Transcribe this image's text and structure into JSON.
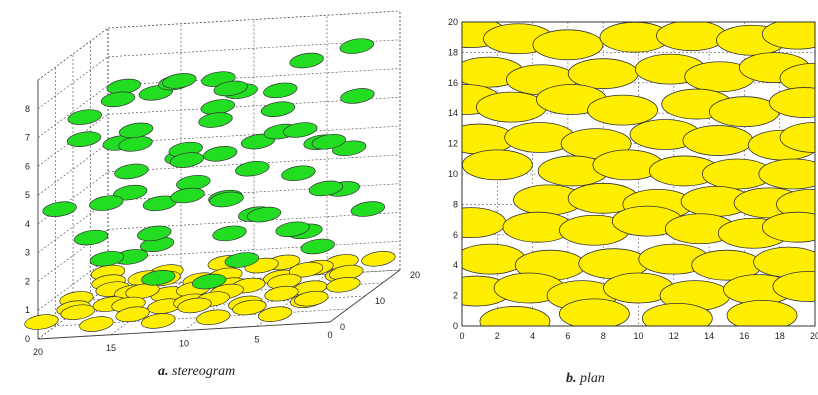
{
  "chart_data": [
    {
      "type": "scatter",
      "title": "",
      "caption_label": "a.",
      "caption_text": "stereogram",
      "projection": "3d",
      "xlabel": "",
      "ylabel": "",
      "zlabel": "",
      "xlim": [
        0,
        20
      ],
      "ylim": [
        0,
        20
      ],
      "zlim": [
        0,
        9
      ],
      "x_ticks": [
        "20",
        "15",
        "10",
        "5",
        "0"
      ],
      "y_ticks": [
        "0",
        "10",
        "20"
      ],
      "z_ticks": [
        "0",
        "1",
        "2",
        "3",
        "4",
        "5",
        "6",
        "7",
        "8"
      ],
      "grid": true,
      "colors": {
        "upper_layer": "#22dd22",
        "lower_layer": "#ffee00",
        "edge": "#333333"
      },
      "series": [
        {
          "values": [
            [
              15,
              2,
              8.0
            ],
            [
              12,
              7,
              8.1
            ],
            [
              8,
              5,
              7.9
            ],
            [
              4,
              10,
              8.3
            ],
            [
              2,
              16,
              8.2
            ],
            [
              17,
              12,
              7.6
            ],
            [
              13,
              10,
              7.8
            ],
            [
              11,
              14,
              7.5
            ],
            [
              9,
              12,
              7.2
            ],
            [
              5,
              6,
              7.0
            ],
            [
              18,
              5,
              7.2
            ],
            [
              16,
              17,
              6.9
            ],
            [
              14,
              3,
              6.8
            ],
            [
              10,
              9,
              6.5
            ],
            [
              7,
              15,
              6.9
            ],
            [
              3,
              4,
              6.4
            ],
            [
              1,
              12,
              6.8
            ],
            [
              19,
              9,
              6.1
            ],
            [
              15,
              7,
              6.0
            ],
            [
              12,
              18,
              6.2
            ],
            [
              8,
              2,
              5.9
            ],
            [
              6,
              11,
              5.8
            ],
            [
              2,
              8,
              5.6
            ],
            [
              18,
              15,
              5.4
            ],
            [
              13,
              13,
              5.2
            ],
            [
              11,
              5,
              5.5
            ],
            [
              9,
              17,
              5.0
            ],
            [
              4,
              14,
              5.1
            ],
            [
              16,
              10,
              4.8
            ],
            [
              14,
              16,
              4.7
            ],
            [
              10,
              1,
              4.6
            ],
            [
              7,
              7,
              4.9
            ],
            [
              3,
              18,
              4.5
            ],
            [
              1,
              3,
              4.4
            ],
            [
              19,
              2,
              4.3
            ],
            [
              17,
              7,
              4.0
            ],
            [
              12,
              11,
              4.2
            ],
            [
              9,
              8,
              3.8
            ],
            [
              6,
              16,
              3.9
            ],
            [
              5,
              2,
              3.7
            ],
            [
              2,
              12,
              3.6
            ],
            [
              18,
              18,
              3.4
            ],
            [
              15,
              14,
              3.3
            ],
            [
              13,
              4,
              3.1
            ],
            [
              11,
              16,
              3.2
            ],
            [
              8,
              12,
              2.9
            ],
            [
              4,
              6,
              2.8
            ],
            [
              1,
              15,
              2.6
            ],
            [
              19,
              11,
              2.5
            ],
            [
              16,
              3,
              2.4
            ],
            [
              14,
              9,
              2.3
            ],
            [
              10,
              13,
              2.2
            ],
            [
              7,
              4,
              2.0
            ],
            [
              3,
              9,
              1.9
            ],
            [
              12,
              1,
              1.8
            ],
            [
              6,
              18,
              1.7
            ],
            [
              17,
              14,
              1.5
            ],
            [
              9,
              3,
              1.4
            ]
          ]
        },
        {
          "values": [
            [
              20,
              1,
              0.5
            ],
            [
              18,
              3,
              0.6
            ],
            [
              16,
              0,
              0.4
            ],
            [
              14,
              2,
              0.5
            ],
            [
              12,
              1,
              0.3
            ],
            [
              10,
              3,
              0.6
            ],
            [
              8,
              0,
              0.4
            ],
            [
              6,
              2,
              0.5
            ],
            [
              4,
              1,
              0.3
            ],
            [
              2,
              3,
              0.6
            ],
            [
              19,
              6,
              0.5
            ],
            [
              17,
              8,
              0.4
            ],
            [
              15,
              5,
              0.6
            ],
            [
              13,
              7,
              0.3
            ],
            [
              11,
              6,
              0.5
            ],
            [
              9,
              8,
              0.6
            ],
            [
              7,
              5,
              0.4
            ],
            [
              5,
              7,
              0.5
            ],
            [
              3,
              6,
              0.3
            ],
            [
              1,
              8,
              0.6
            ],
            [
              20,
              11,
              0.4
            ],
            [
              18,
              13,
              0.5
            ],
            [
              16,
              10,
              0.6
            ],
            [
              14,
              12,
              0.3
            ],
            [
              12,
              11,
              0.5
            ],
            [
              10,
              13,
              0.4
            ],
            [
              8,
              10,
              0.6
            ],
            [
              6,
              12,
              0.5
            ],
            [
              4,
              11,
              0.3
            ],
            [
              2,
              13,
              0.6
            ],
            [
              19,
              16,
              0.5
            ],
            [
              17,
              18,
              0.4
            ],
            [
              15,
              15,
              0.6
            ],
            [
              13,
              17,
              0.3
            ],
            [
              11,
              16,
              0.5
            ],
            [
              9,
              18,
              0.6
            ],
            [
              7,
              15,
              0.4
            ],
            [
              5,
              17,
              0.5
            ],
            [
              3,
              16,
              0.3
            ],
            [
              1,
              18,
              0.6
            ],
            [
              20,
              20,
              0.5
            ],
            [
              16,
              20,
              0.4
            ],
            [
              12,
              20,
              0.6
            ],
            [
              8,
              20,
              0.5
            ],
            [
              4,
              20,
              0.4
            ],
            [
              15,
              9,
              0.7
            ],
            [
              9,
              4,
              0.7
            ],
            [
              5,
              14,
              0.7
            ]
          ]
        }
      ]
    },
    {
      "type": "scatter",
      "title": "",
      "caption_label": "b.",
      "caption_text": "plan",
      "xlabel": "",
      "ylabel": "",
      "xlim": [
        0,
        20
      ],
      "ylim": [
        0,
        20
      ],
      "x_ticks": [
        "0",
        "2",
        "4",
        "6",
        "8",
        "10",
        "12",
        "14",
        "16",
        "18",
        "20"
      ],
      "y_ticks": [
        "0",
        "2",
        "4",
        "6",
        "8",
        "10",
        "12",
        "14",
        "16",
        "18",
        "20"
      ],
      "grid": true,
      "colors": {
        "fill": "#ffee00",
        "edge": "#333333"
      },
      "series": [
        {
          "values": [
            [
              0.5,
              19.3
            ],
            [
              3.2,
              18.9
            ],
            [
              6.0,
              18.5
            ],
            [
              9.8,
              19.0
            ],
            [
              13.0,
              19.1
            ],
            [
              16.4,
              18.8
            ],
            [
              19.0,
              19.2
            ],
            [
              1.5,
              16.7
            ],
            [
              4.5,
              16.2
            ],
            [
              8.0,
              16.6
            ],
            [
              11.8,
              16.9
            ],
            [
              14.6,
              16.4
            ],
            [
              17.7,
              17.0
            ],
            [
              20.0,
              16.3
            ],
            [
              0.2,
              14.9
            ],
            [
              2.8,
              14.4
            ],
            [
              6.2,
              14.9
            ],
            [
              9.1,
              14.2
            ],
            [
              13.3,
              14.6
            ],
            [
              16.0,
              14.1
            ],
            [
              19.4,
              14.7
            ],
            [
              1.0,
              12.3
            ],
            [
              4.4,
              12.4
            ],
            [
              7.6,
              12.0
            ],
            [
              11.5,
              12.6
            ],
            [
              14.5,
              12.2
            ],
            [
              18.2,
              11.9
            ],
            [
              20.0,
              12.4
            ],
            [
              2.0,
              10.6
            ],
            [
              6.3,
              10.2
            ],
            [
              9.4,
              10.6
            ],
            [
              12.6,
              10.2
            ],
            [
              15.6,
              10.0
            ],
            [
              18.8,
              10.0
            ],
            [
              4.9,
              8.3
            ],
            [
              8.0,
              8.4
            ],
            [
              11.1,
              8.0
            ],
            [
              14.4,
              8.2
            ],
            [
              17.4,
              8.1
            ],
            [
              19.8,
              8.0
            ],
            [
              0.5,
              6.8
            ],
            [
              4.3,
              6.5
            ],
            [
              7.5,
              6.3
            ],
            [
              10.5,
              6.9
            ],
            [
              13.5,
              6.4
            ],
            [
              16.5,
              6.1
            ],
            [
              19.0,
              6.5
            ],
            [
              1.6,
              4.4
            ],
            [
              5.0,
              4.0
            ],
            [
              8.6,
              4.1
            ],
            [
              12.0,
              4.4
            ],
            [
              15.0,
              4.0
            ],
            [
              18.5,
              4.2
            ],
            [
              0.8,
              2.3
            ],
            [
              3.8,
              2.5
            ],
            [
              6.8,
              2.0
            ],
            [
              10.0,
              2.5
            ],
            [
              13.2,
              2.0
            ],
            [
              16.8,
              2.4
            ],
            [
              19.6,
              2.6
            ],
            [
              3.0,
              0.3
            ],
            [
              7.5,
              0.8
            ],
            [
              12.2,
              0.5
            ],
            [
              17.0,
              0.7
            ]
          ]
        }
      ]
    }
  ]
}
